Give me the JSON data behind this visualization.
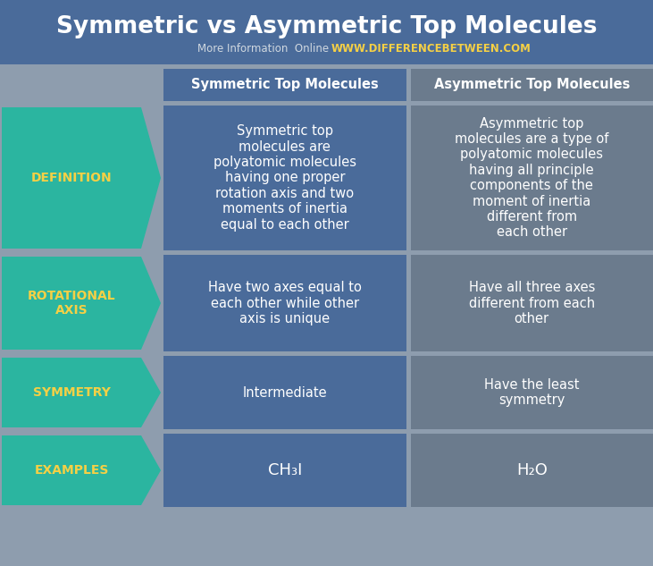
{
  "title": "Symmetric vs Asymmetric Top Molecules",
  "subtitle_gray": "More Information  Online",
  "subtitle_url": "WWW.DIFFERENCEBETWEEN.COM",
  "bg_color": "#8e9dae",
  "header_bg": "#4a6b9a",
  "col1_header": "Symmetric Top Molecules",
  "col2_header": "Asymmetric Top Molecules",
  "col1_cell_color": "#4a6b9a",
  "col2_cell_color": "#6b7b8d",
  "arrow_color": "#2bb5a0",
  "arrow_text_color": "#f5d045",
  "title_color": "#ffffff",
  "header_text_color": "#ffffff",
  "cell_text_color": "#ffffff",
  "fig_width": 7.31,
  "fig_height": 6.33,
  "dpi": 100,
  "rows": [
    {
      "label": "DEFINITION",
      "col1": "Symmetric top\nmolecules are\npolyatomic molecules\nhaving one proper\nrotation axis and two\nmoments of inertia\nequal to each other",
      "col2": "Asymmetric top\nmolecules are a type of\npolyatomic molecules\nhaving all principle\ncomponents of the\nmoment of inertia\ndifferent from\neach other"
    },
    {
      "label": "ROTATIONAL\nAXIS",
      "col1": "Have two axes equal to\neach other while other\naxis is unique",
      "col2": "Have all three axes\ndifferent from each\nother"
    },
    {
      "label": "SYMMETRY",
      "col1": "Intermediate",
      "col2": "Have the least\nsymmetry"
    },
    {
      "label": "EXAMPLES",
      "col1": "CH₃I",
      "col2": "H₂O"
    }
  ]
}
